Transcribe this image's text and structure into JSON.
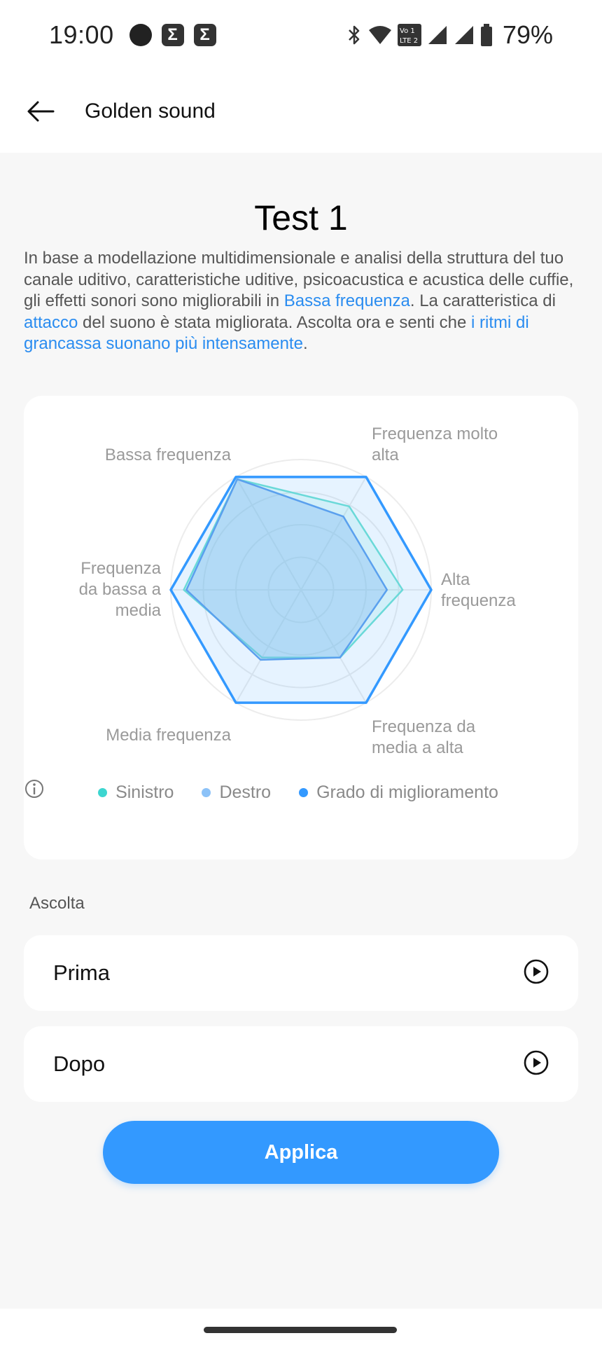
{
  "status_bar": {
    "time": "19:00",
    "notification_icons": [
      "circle-icon",
      "sigma-icon",
      "sigma-icon"
    ],
    "battery": "79%",
    "indicator_icons": [
      "bluetooth-icon",
      "wifi-icon",
      "volte-icon",
      "signal-icon",
      "signal-icon",
      "battery-icon"
    ]
  },
  "app_bar": {
    "title": "Golden sound",
    "back_icon": "arrow-left-icon"
  },
  "test": {
    "title": "Test 1",
    "description": {
      "part1": "In base a modellazione multidimensionale e analisi della struttura del tuo canale uditivo, caratteristiche uditive, psicoacustica e acustica delle cuffie, gli effetti sonori sono migliorabili in ",
      "highlight1": "Bassa frequenza",
      "part2": ". La caratteristica di ",
      "highlight2": "attacco",
      "part3": " del suono è stata migliorata. Ascolta ora e senti che ",
      "highlight3": "i ritmi di grancassa suonano più intensamente",
      "part4": "."
    }
  },
  "chart_data": {
    "type": "radar",
    "axes": [
      "Frequenza molto alta",
      "Alta frequenza",
      "Frequenza da media a alta",
      "Media frequenza",
      "Frequenza da bassa a media",
      "Bassa frequenza"
    ],
    "range": [
      0,
      1
    ],
    "rings": 4,
    "series": [
      {
        "name": "Sinistro",
        "color": "#3dd6d0",
        "values": [
          0.74,
          0.78,
          0.6,
          0.6,
          0.9,
          0.98
        ]
      },
      {
        "name": "Destro",
        "color": "#8cc2f8",
        "values": [
          0.65,
          0.66,
          0.6,
          0.62,
          0.88,
          0.98
        ]
      },
      {
        "name": "Grado di miglioramento",
        "color": "#3399ff",
        "values": [
          1.0,
          1.0,
          1.0,
          1.0,
          1.0,
          1.0
        ]
      }
    ],
    "legend_position": "bottom",
    "info_icon": "info-circle-icon"
  },
  "listen": {
    "section_label": "Ascolta",
    "items": [
      {
        "label": "Prima",
        "icon": "play-circle-icon"
      },
      {
        "label": "Dopo",
        "icon": "play-circle-icon"
      }
    ]
  },
  "actions": {
    "apply_label": "Applica"
  }
}
